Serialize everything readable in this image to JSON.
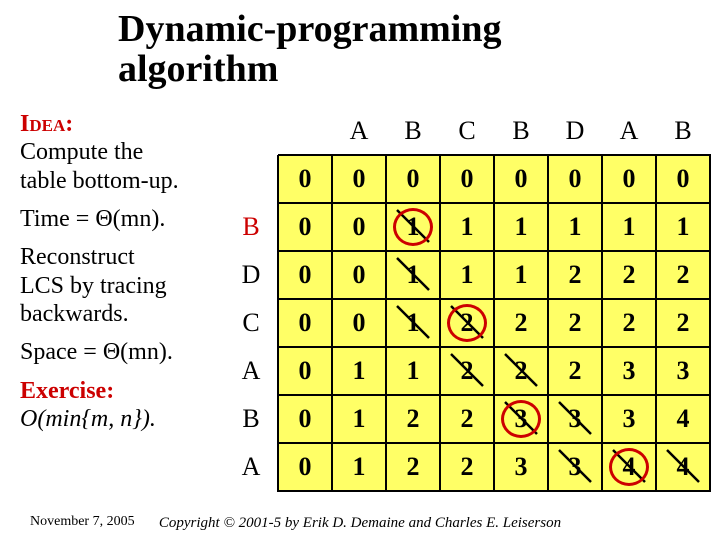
{
  "title_line1": "Dynamic-programming",
  "title_line2": "algorithm",
  "idea_label": "Idea:",
  "idea_text1": "Compute the",
  "idea_text2": "table bottom-up.",
  "time_label": "Time = ",
  "time_expr": "Θ(mn).",
  "reconstruct1": "Reconstruct",
  "reconstruct2": "LCS by tracing",
  "reconstruct3": "backwards.",
  "space_label": "Space = ",
  "space_expr": "Θ(mn).",
  "exercise_label": "Exercise:",
  "exercise_line1": "O(min{m, n}).",
  "footer_date": "November 7, 2005",
  "footer_copy": "Copyright © 2001-5 by Erik D. Demaine and Charles E. Leiserson",
  "table": {
    "col_headers": [
      "",
      "A",
      "B",
      "C",
      "B",
      "D",
      "A",
      "B"
    ],
    "row_headers": [
      "",
      "B",
      "D",
      "C",
      "A",
      "B",
      "A"
    ],
    "cells": [
      [
        0,
        0,
        0,
        0,
        0,
        0,
        0,
        0
      ],
      [
        0,
        0,
        1,
        1,
        1,
        1,
        1,
        1
      ],
      [
        0,
        0,
        1,
        1,
        1,
        2,
        2,
        2
      ],
      [
        0,
        0,
        1,
        2,
        2,
        2,
        2,
        2
      ],
      [
        0,
        1,
        1,
        2,
        2,
        2,
        3,
        3
      ],
      [
        0,
        1,
        2,
        2,
        3,
        3,
        3,
        4
      ],
      [
        0,
        1,
        2,
        2,
        3,
        3,
        4,
        4
      ]
    ],
    "diagonals": [
      [
        1,
        2
      ],
      [
        2,
        2
      ],
      [
        3,
        2
      ],
      [
        3,
        3
      ],
      [
        4,
        3
      ],
      [
        4,
        4
      ],
      [
        5,
        4
      ],
      [
        5,
        5
      ],
      [
        6,
        5
      ],
      [
        6,
        6
      ],
      [
        6,
        7
      ]
    ],
    "lcs_circles": [
      [
        1,
        2
      ],
      [
        3,
        3
      ],
      [
        5,
        4
      ],
      [
        6,
        6
      ]
    ],
    "colors": {
      "cell_bg": "#ffff66",
      "cell_border": "#000000",
      "lcs_circle": "#cc0000",
      "header_red": "#cc0000"
    }
  }
}
